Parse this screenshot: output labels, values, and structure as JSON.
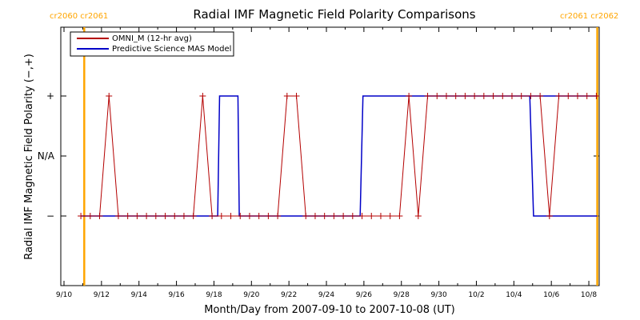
{
  "chart_data": {
    "type": "line",
    "title": "Radial IMF Magnetic Field Polarity Comparisons",
    "xlabel": "Month/Day from 2007-09-10 to 2007-10-08 (UT)",
    "ylabel": "Radial IMF Magnetic Field Polarity (−,+)",
    "x_tick_labels": [
      "9/10",
      "9/12",
      "9/14",
      "9/16",
      "9/18",
      "9/20",
      "9/22",
      "9/24",
      "9/26",
      "9/28",
      "9/30",
      "10/2",
      "10/4",
      "10/6",
      "10/8"
    ],
    "x_range_days": [
      0,
      28
    ],
    "y_tick_labels": [
      "+",
      "N/A",
      "−"
    ],
    "y_levels": {
      "plus": 1,
      "na": 0,
      "minus": -1
    },
    "y_range": [
      -2,
      2
    ],
    "grid": false,
    "legend_position": "top-left",
    "colors": {
      "omni": "#b40000",
      "mas": "#0000c8",
      "carrington": "#ffa500"
    },
    "carrington_markers": [
      {
        "day": 1.08,
        "label": "cr2060 cr2061"
      },
      {
        "day": 28.45,
        "label": "cr2061 cr2062"
      }
    ],
    "series": [
      {
        "name": "OMNI_M (12-hr avg)",
        "marker": "plus",
        "x": [
          0.9,
          1.4,
          1.9,
          2.4,
          2.9,
          3.4,
          3.9,
          4.4,
          4.9,
          5.4,
          5.9,
          6.4,
          6.9,
          7.4,
          7.9,
          8.4,
          8.9,
          9.4,
          9.9,
          10.4,
          10.9,
          11.4,
          11.9,
          12.4,
          12.9,
          13.4,
          13.9,
          14.4,
          14.9,
          15.4,
          15.9,
          16.4,
          16.9,
          17.4,
          17.9,
          18.4,
          18.9,
          19.4,
          19.9,
          20.4,
          20.9,
          21.4,
          21.9,
          22.4,
          22.9,
          23.4,
          23.9,
          24.4,
          24.9,
          25.4,
          25.9,
          26.4,
          26.9,
          27.4,
          27.9,
          28.4
        ],
        "y": [
          -1,
          -1,
          -1,
          1,
          -1,
          -1,
          -1,
          -1,
          -1,
          -1,
          -1,
          -1,
          -1,
          1,
          -1,
          -1,
          -1,
          -1,
          -1,
          -1,
          -1,
          -1,
          1,
          1,
          -1,
          -1,
          -1,
          -1,
          -1,
          -1,
          -1,
          -1,
          -1,
          -1,
          -1,
          1,
          -1,
          1,
          1,
          1,
          1,
          1,
          1,
          1,
          1,
          1,
          1,
          1,
          1,
          1,
          -1,
          1,
          1,
          1,
          1,
          1
        ]
      },
      {
        "name": "Predictive Science MAS Model",
        "marker": "none",
        "x": [
          0.9,
          8.2,
          8.3,
          9.28,
          9.35,
          15.8,
          15.95,
          28.45
        ],
        "y": [
          -1,
          -1,
          1,
          1,
          -1,
          -1,
          1,
          1
        ]
      }
    ],
    "mas_tail": {
      "x": [
        24.85,
        25.05,
        28.45
      ],
      "y": [
        1,
        -1,
        -1
      ]
    }
  }
}
